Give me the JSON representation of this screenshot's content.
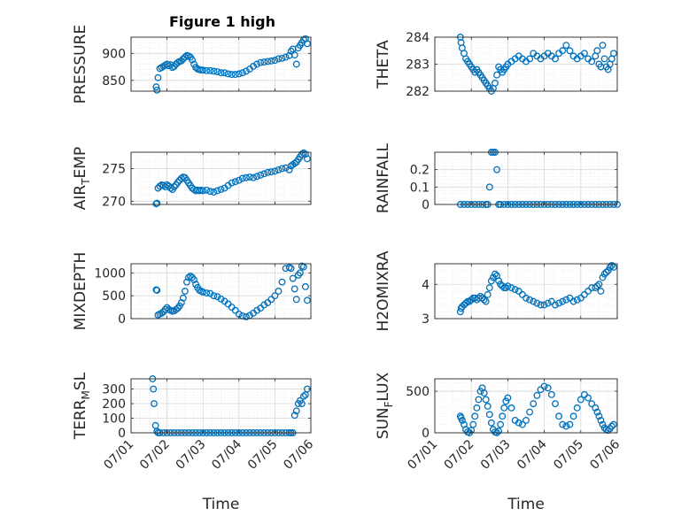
{
  "figure": {
    "title": "Figure 1 high",
    "marker_color": "#0072BD",
    "axis_color": "#262626",
    "grid_color": "#d9d9d9"
  },
  "chart_data": [
    {
      "type": "scatter",
      "ylabel": "PRESSURE",
      "xlabel": "",
      "xlim": [
        0,
        5
      ],
      "xticks": [
        0,
        1,
        2,
        3,
        4,
        5
      ],
      "ylim": [
        830,
        930
      ],
      "yticks": [
        850,
        900
      ],
      "ytick_labels": [
        "850",
        "900"
      ],
      "x": [
        0.7,
        0.72,
        0.75,
        0.8,
        0.85,
        0.9,
        0.95,
        1.0,
        1.05,
        1.1,
        1.15,
        1.2,
        1.25,
        1.3,
        1.35,
        1.4,
        1.45,
        1.5,
        1.55,
        1.6,
        1.65,
        1.7,
        1.75,
        1.8,
        1.85,
        1.9,
        1.95,
        2.0,
        2.1,
        2.2,
        2.3,
        2.4,
        2.5,
        2.6,
        2.7,
        2.8,
        2.9,
        3.0,
        3.1,
        3.2,
        3.3,
        3.4,
        3.5,
        3.6,
        3.7,
        3.8,
        3.9,
        4.0,
        4.1,
        4.2,
        4.3,
        4.4,
        4.45,
        4.5,
        4.55,
        4.6,
        4.65,
        4.7,
        4.75,
        4.8,
        4.85,
        4.9
      ],
      "y": [
        838,
        832,
        855,
        872,
        874,
        876,
        878,
        880,
        877,
        879,
        874,
        876,
        880,
        883,
        885,
        886,
        890,
        893,
        896,
        895,
        893,
        888,
        880,
        874,
        871,
        870,
        869,
        869,
        868,
        868,
        867,
        866,
        864,
        864,
        862,
        861,
        861,
        862,
        864,
        867,
        871,
        876,
        880,
        883,
        884,
        885,
        886,
        887,
        890,
        891,
        893,
        896,
        904,
        908,
        897,
        880,
        910,
        915,
        920,
        925,
        927,
        918
      ]
    },
    {
      "type": "scatter",
      "ylabel": "THETA",
      "xlabel": "",
      "xlim": [
        0,
        5
      ],
      "xticks": [
        0,
        1,
        2,
        3,
        4,
        5
      ],
      "ylim": [
        282,
        284
      ],
      "yticks": [
        282,
        283,
        284
      ],
      "ytick_labels": [
        "282",
        "283",
        "284"
      ],
      "x": [
        0.7,
        0.72,
        0.75,
        0.8,
        0.85,
        0.9,
        0.95,
        1.0,
        1.05,
        1.1,
        1.15,
        1.2,
        1.25,
        1.3,
        1.35,
        1.4,
        1.45,
        1.5,
        1.55,
        1.6,
        1.65,
        1.7,
        1.75,
        1.8,
        1.85,
        1.9,
        1.95,
        2.0,
        2.1,
        2.2,
        2.3,
        2.4,
        2.5,
        2.6,
        2.7,
        2.8,
        2.9,
        3.0,
        3.1,
        3.2,
        3.3,
        3.4,
        3.5,
        3.6,
        3.7,
        3.8,
        3.9,
        4.0,
        4.1,
        4.2,
        4.3,
        4.4,
        4.45,
        4.5,
        4.55,
        4.6,
        4.65,
        4.7,
        4.75,
        4.8,
        4.85,
        4.9
      ],
      "y": [
        284.0,
        283.8,
        283.6,
        283.4,
        283.2,
        283.1,
        283.0,
        282.9,
        282.8,
        282.7,
        282.8,
        282.7,
        282.6,
        282.5,
        282.4,
        282.3,
        282.2,
        282.1,
        282.0,
        282.1,
        282.3,
        282.6,
        282.9,
        282.8,
        282.7,
        282.8,
        282.9,
        283.0,
        283.1,
        283.2,
        283.3,
        283.2,
        283.1,
        283.2,
        283.4,
        283.3,
        283.2,
        283.3,
        283.4,
        283.3,
        283.2,
        283.4,
        283.5,
        283.7,
        283.5,
        283.3,
        283.2,
        283.3,
        283.4,
        283.2,
        283.1,
        283.3,
        283.5,
        283.0,
        282.9,
        283.7,
        283.2,
        282.9,
        282.8,
        283.0,
        283.2,
        283.4
      ]
    },
    {
      "type": "scatter",
      "ylabel": "AIR_TEMP",
      "xlabel": "",
      "xlim": [
        0,
        5
      ],
      "xticks": [
        0,
        1,
        2,
        3,
        4,
        5
      ],
      "ylim": [
        269.5,
        277.5
      ],
      "yticks": [
        270,
        275
      ],
      "ytick_labels": [
        "270",
        "275"
      ],
      "x": [
        0.7,
        0.72,
        0.75,
        0.8,
        0.85,
        0.9,
        0.95,
        1.0,
        1.05,
        1.1,
        1.15,
        1.2,
        1.25,
        1.3,
        1.35,
        1.4,
        1.45,
        1.5,
        1.55,
        1.6,
        1.65,
        1.7,
        1.75,
        1.8,
        1.85,
        1.9,
        1.95,
        2.0,
        2.1,
        2.2,
        2.3,
        2.4,
        2.5,
        2.6,
        2.7,
        2.8,
        2.9,
        3.0,
        3.1,
        3.2,
        3.3,
        3.4,
        3.5,
        3.6,
        3.7,
        3.8,
        3.9,
        4.0,
        4.1,
        4.2,
        4.3,
        4.4,
        4.45,
        4.5,
        4.55,
        4.6,
        4.65,
        4.7,
        4.75,
        4.8,
        4.85,
        4.9
      ],
      "y": [
        269.6,
        269.7,
        272.0,
        272.3,
        272.5,
        272.4,
        272.2,
        272.5,
        272.3,
        272.0,
        271.8,
        272.2,
        272.5,
        272.9,
        273.2,
        273.5,
        273.7,
        273.6,
        273.2,
        272.8,
        272.4,
        272.0,
        271.8,
        271.6,
        271.7,
        271.6,
        271.7,
        271.6,
        271.7,
        271.5,
        271.4,
        271.6,
        271.8,
        272.0,
        272.4,
        272.8,
        273.0,
        273.2,
        273.5,
        273.6,
        273.7,
        273.6,
        273.8,
        274.0,
        274.2,
        274.4,
        274.5,
        274.6,
        274.8,
        275.0,
        275.1,
        274.8,
        275.4,
        275.6,
        275.8,
        276.0,
        276.4,
        276.8,
        277.2,
        277.4,
        277.2,
        276.5
      ]
    },
    {
      "type": "scatter",
      "ylabel": "RAINFALL",
      "xlabel": "",
      "xlim": [
        0,
        5
      ],
      "xticks": [
        0,
        1,
        2,
        3,
        4,
        5
      ],
      "ylim": [
        0,
        0.3
      ],
      "yticks": [
        0,
        0.1,
        0.2
      ],
      "ytick_labels": [
        "0",
        "0.1",
        "0.2"
      ],
      "x": [
        0.7,
        0.8,
        0.9,
        1.0,
        1.1,
        1.2,
        1.3,
        1.4,
        1.45,
        1.5,
        1.55,
        1.6,
        1.65,
        1.7,
        1.75,
        1.8,
        1.9,
        2.0,
        2.1,
        2.2,
        2.3,
        2.4,
        2.5,
        2.6,
        2.7,
        2.8,
        2.9,
        3.0,
        3.1,
        3.2,
        3.3,
        3.4,
        3.5,
        3.6,
        3.7,
        3.8,
        3.9,
        4.0,
        4.1,
        4.2,
        4.3,
        4.4,
        4.5,
        4.6,
        4.7,
        4.8,
        4.9,
        5.0
      ],
      "y": [
        0,
        0,
        0,
        0,
        0,
        0,
        0,
        0,
        0,
        0.1,
        0.3,
        0.3,
        0.3,
        0.2,
        0,
        0,
        0,
        0,
        0,
        0,
        0,
        0,
        0,
        0,
        0,
        0,
        0,
        0,
        0,
        0,
        0,
        0,
        0,
        0,
        0,
        0,
        0,
        0,
        0,
        0,
        0,
        0,
        0,
        0,
        0,
        0,
        0,
        0
      ]
    },
    {
      "type": "scatter",
      "ylabel": "MIXDEPTH",
      "xlabel": "",
      "xlim": [
        0,
        5
      ],
      "xticks": [
        0,
        1,
        2,
        3,
        4,
        5
      ],
      "ylim": [
        0,
        1200
      ],
      "yticks": [
        0,
        500,
        1000
      ],
      "ytick_labels": [
        "0",
        "500",
        "1000"
      ],
      "x": [
        0.7,
        0.72,
        0.75,
        0.8,
        0.85,
        0.9,
        0.95,
        1.0,
        1.05,
        1.1,
        1.15,
        1.2,
        1.25,
        1.3,
        1.35,
        1.4,
        1.45,
        1.5,
        1.55,
        1.6,
        1.65,
        1.7,
        1.75,
        1.8,
        1.85,
        1.9,
        1.95,
        2.0,
        2.1,
        2.2,
        2.3,
        2.4,
        2.5,
        2.6,
        2.7,
        2.8,
        2.9,
        3.0,
        3.1,
        3.2,
        3.3,
        3.4,
        3.5,
        3.6,
        3.7,
        3.8,
        3.9,
        4.0,
        4.1,
        4.2,
        4.3,
        4.4,
        4.45,
        4.5,
        4.55,
        4.6,
        4.65,
        4.7,
        4.75,
        4.8,
        4.85,
        4.9
      ],
      "y": [
        630,
        620,
        80,
        100,
        120,
        150,
        200,
        240,
        200,
        180,
        160,
        170,
        200,
        230,
        280,
        350,
        450,
        600,
        800,
        900,
        930,
        900,
        850,
        750,
        680,
        620,
        600,
        580,
        560,
        550,
        500,
        480,
        430,
        380,
        320,
        250,
        180,
        100,
        60,
        40,
        70,
        120,
        180,
        230,
        300,
        350,
        420,
        500,
        600,
        800,
        1100,
        1120,
        1100,
        880,
        650,
        420,
        950,
        1000,
        1150,
        1130,
        700,
        400
      ]
    },
    {
      "type": "scatter",
      "ylabel": "H2OMIXRA",
      "xlabel": "",
      "xlim": [
        0,
        5
      ],
      "xticks": [
        0,
        1,
        2,
        3,
        4,
        5
      ],
      "ylim": [
        3,
        4.6
      ],
      "yticks": [
        3,
        4
      ],
      "ytick_labels": [
        "3",
        "4"
      ],
      "x": [
        0.7,
        0.72,
        0.75,
        0.8,
        0.85,
        0.9,
        0.95,
        1.0,
        1.05,
        1.1,
        1.15,
        1.2,
        1.25,
        1.3,
        1.35,
        1.4,
        1.45,
        1.5,
        1.55,
        1.6,
        1.65,
        1.7,
        1.75,
        1.8,
        1.85,
        1.9,
        1.95,
        2.0,
        2.1,
        2.2,
        2.3,
        2.4,
        2.5,
        2.6,
        2.7,
        2.8,
        2.9,
        3.0,
        3.1,
        3.2,
        3.3,
        3.4,
        3.5,
        3.6,
        3.7,
        3.8,
        3.9,
        4.0,
        4.1,
        4.2,
        4.3,
        4.4,
        4.45,
        4.5,
        4.55,
        4.6,
        4.65,
        4.7,
        4.75,
        4.8,
        4.85,
        4.9
      ],
      "y": [
        3.2,
        3.3,
        3.35,
        3.4,
        3.45,
        3.5,
        3.5,
        3.55,
        3.6,
        3.6,
        3.55,
        3.6,
        3.65,
        3.6,
        3.55,
        3.5,
        3.7,
        3.9,
        4.1,
        4.2,
        4.3,
        4.25,
        4.1,
        4.0,
        3.95,
        3.9,
        3.9,
        3.95,
        3.9,
        3.85,
        3.8,
        3.7,
        3.6,
        3.55,
        3.5,
        3.45,
        3.4,
        3.4,
        3.45,
        3.5,
        3.4,
        3.45,
        3.5,
        3.55,
        3.6,
        3.5,
        3.55,
        3.6,
        3.7,
        3.8,
        3.9,
        3.9,
        3.95,
        4.0,
        3.8,
        4.2,
        4.3,
        4.35,
        4.4,
        4.5,
        4.55,
        4.5
      ]
    },
    {
      "type": "scatter",
      "ylabel": "TERR_MSL",
      "xlabel": "Time",
      "xlim": [
        0,
        5
      ],
      "xticks": [
        0,
        1,
        2,
        3,
        4,
        5
      ],
      "xtick_labels": [
        "07/01",
        "07/02",
        "07/03",
        "07/04",
        "07/05",
        "07/06"
      ],
      "ylim": [
        0,
        370
      ],
      "yticks": [
        0,
        100,
        200,
        300
      ],
      "ytick_labels": [
        "0",
        "100",
        "200",
        "300"
      ],
      "x": [
        0.6,
        0.62,
        0.64,
        0.68,
        0.72,
        0.75,
        0.8,
        0.9,
        1.0,
        1.1,
        1.2,
        1.3,
        1.4,
        1.5,
        1.6,
        1.7,
        1.8,
        1.9,
        2.0,
        2.1,
        2.2,
        2.3,
        2.4,
        2.5,
        2.6,
        2.7,
        2.8,
        2.9,
        3.0,
        3.1,
        3.2,
        3.3,
        3.4,
        3.5,
        3.6,
        3.7,
        3.8,
        3.9,
        4.0,
        4.1,
        4.2,
        4.3,
        4.4,
        4.45,
        4.5,
        4.55,
        4.6,
        4.65,
        4.7,
        4.75,
        4.8,
        4.85,
        4.9
      ],
      "y": [
        370,
        300,
        200,
        50,
        10,
        0,
        0,
        0,
        0,
        0,
        0,
        0,
        0,
        0,
        0,
        0,
        0,
        0,
        0,
        0,
        0,
        0,
        0,
        0,
        0,
        0,
        0,
        0,
        0,
        0,
        0,
        0,
        0,
        0,
        0,
        0,
        0,
        0,
        0,
        0,
        0,
        0,
        0,
        0,
        0,
        120,
        150,
        200,
        220,
        200,
        250,
        260,
        300
      ]
    },
    {
      "type": "scatter",
      "ylabel": "SUN_FLUX",
      "xlabel": "Time",
      "xlim": [
        0,
        5
      ],
      "xticks": [
        0,
        1,
        2,
        3,
        4,
        5
      ],
      "xtick_labels": [
        "07/01",
        "07/02",
        "07/03",
        "07/04",
        "07/05",
        "07/06"
      ],
      "ylim": [
        0,
        650
      ],
      "yticks": [
        0,
        500
      ],
      "ytick_labels": [
        "0",
        "500"
      ],
      "x": [
        0.7,
        0.72,
        0.75,
        0.8,
        0.85,
        0.9,
        0.95,
        1.0,
        1.05,
        1.1,
        1.15,
        1.2,
        1.25,
        1.3,
        1.35,
        1.4,
        1.45,
        1.5,
        1.55,
        1.6,
        1.65,
        1.7,
        1.75,
        1.8,
        1.85,
        1.9,
        1.95,
        2.0,
        2.1,
        2.2,
        2.3,
        2.4,
        2.5,
        2.6,
        2.7,
        2.8,
        2.9,
        3.0,
        3.1,
        3.2,
        3.3,
        3.4,
        3.5,
        3.6,
        3.7,
        3.8,
        3.9,
        4.0,
        4.1,
        4.2,
        4.3,
        4.4,
        4.45,
        4.5,
        4.55,
        4.6,
        4.65,
        4.7,
        4.75,
        4.8,
        4.85,
        4.9
      ],
      "y": [
        200,
        180,
        150,
        100,
        40,
        10,
        0,
        30,
        100,
        200,
        300,
        400,
        500,
        540,
        480,
        400,
        320,
        220,
        120,
        40,
        10,
        0,
        20,
        100,
        200,
        300,
        380,
        420,
        300,
        150,
        120,
        100,
        150,
        250,
        350,
        450,
        520,
        560,
        540,
        460,
        350,
        200,
        100,
        80,
        100,
        200,
        300,
        400,
        460,
        420,
        350,
        300,
        250,
        200,
        150,
        100,
        60,
        40,
        30,
        50,
        80,
        100
      ]
    }
  ]
}
